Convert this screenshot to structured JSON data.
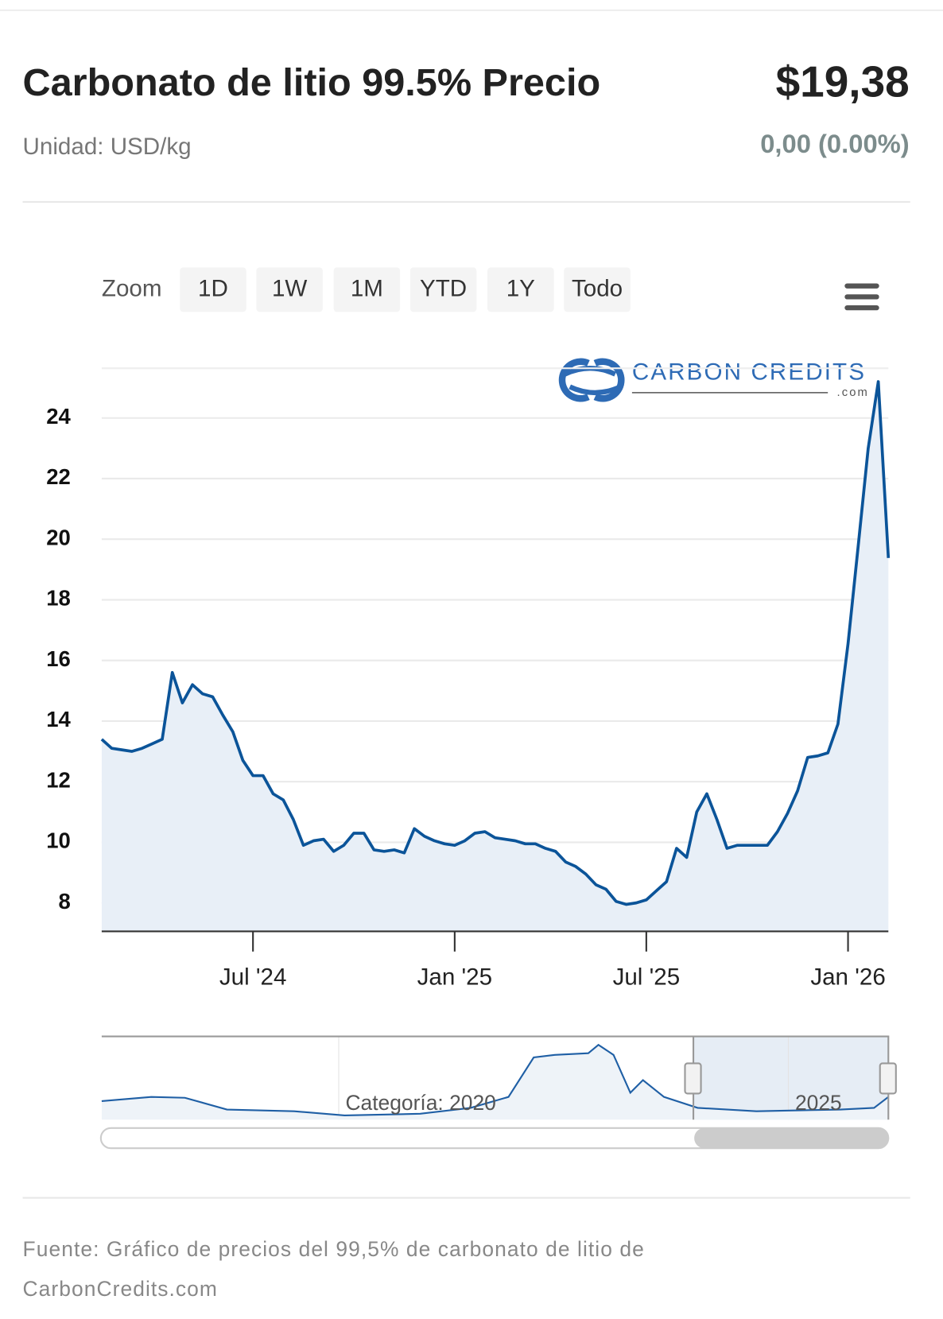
{
  "header": {
    "title": "Carbonato de litio 99.5% Precio",
    "price": "$19,38",
    "unit": "Unidad: USD/kg",
    "change": "0,00 (0.00%)"
  },
  "zoom": {
    "label": "Zoom",
    "buttons": [
      "1D",
      "1W",
      "1M",
      "YTD",
      "1Y",
      "Todo"
    ]
  },
  "logo": {
    "name": "CARBON CREDITS",
    "suffix": ".com"
  },
  "chart_data": {
    "type": "line",
    "color": "#0b5499",
    "fill": "#e8eff7",
    "grid": true,
    "categories": [
      null,
      null,
      null,
      null,
      null,
      null,
      null,
      null,
      null,
      null,
      null,
      null,
      null,
      null,
      null,
      "Jul '24",
      null,
      null,
      null,
      null,
      null,
      null,
      null,
      null,
      null,
      null,
      null,
      null,
      null,
      null,
      null,
      null,
      null,
      null,
      null,
      "Jan '25",
      null,
      null,
      null,
      null,
      null,
      null,
      null,
      null,
      null,
      null,
      null,
      null,
      null,
      null,
      null,
      null,
      null,
      null,
      "Jul '25",
      null,
      null,
      null,
      null,
      null,
      null,
      null,
      null,
      null,
      null,
      null,
      null,
      null,
      null,
      null,
      null,
      null,
      null,
      null,
      "Jan '26",
      null,
      null,
      null,
      null
    ],
    "values": [
      13.4,
      13.1,
      13.05,
      13.0,
      13.1,
      13.25,
      13.4,
      15.6,
      14.6,
      15.2,
      14.9,
      14.8,
      14.2,
      13.65,
      12.7,
      12.2,
      12.2,
      11.6,
      11.4,
      10.75,
      9.9,
      10.05,
      10.1,
      9.7,
      9.9,
      10.3,
      10.3,
      9.75,
      9.7,
      9.75,
      9.65,
      10.45,
      10.2,
      10.05,
      9.95,
      9.9,
      10.05,
      10.3,
      10.35,
      10.15,
      10.1,
      10.05,
      9.95,
      9.95,
      9.8,
      9.7,
      9.35,
      9.2,
      8.95,
      8.6,
      8.45,
      8.05,
      7.95,
      8.0,
      8.1,
      8.4,
      8.7,
      9.8,
      9.5,
      11.0,
      11.6,
      10.75,
      9.8,
      9.9,
      9.9,
      9.9,
      9.9,
      10.35,
      10.95,
      11.7,
      12.8,
      12.85,
      12.95,
      13.9,
      16.55,
      19.75,
      23.0,
      25.2,
      19.38
    ],
    "ylim": [
      7.06,
      25.64
    ],
    "yticks": [
      8,
      10,
      12,
      14,
      16,
      18,
      20,
      22,
      24
    ]
  },
  "navigator": {
    "labels": [
      "Categoría: 2020",
      "2025"
    ]
  },
  "footer": {
    "lines": [
      "Fuente: Gráfico de precios del 99,5% de carbonato de litio de",
      "CarbonCredits.com"
    ]
  }
}
